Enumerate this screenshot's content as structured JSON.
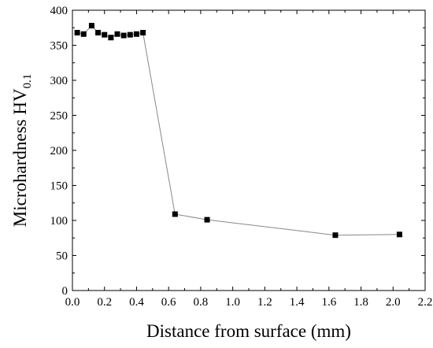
{
  "chart_data": {
    "type": "line",
    "title": "",
    "xlabel": "Distance from surface (mm)",
    "ylabel": "Microhardness HV",
    "ylabel_subscript": "0.1",
    "xlim": [
      0,
      2.2
    ],
    "ylim": [
      0,
      400
    ],
    "x_ticks": [
      0.0,
      0.2,
      0.4,
      0.6,
      0.8,
      1.0,
      1.2,
      1.4,
      1.6,
      1.8,
      2.0,
      2.2
    ],
    "y_ticks": [
      0,
      50,
      100,
      150,
      200,
      250,
      300,
      350,
      400
    ],
    "x_tick_labels": [
      "0.0",
      "0.2",
      "0.4",
      "0.6",
      "0.8",
      "1.0",
      "1.2",
      "1.4",
      "1.6",
      "1.8",
      "2.0",
      "2.2"
    ],
    "y_tick_labels": [
      "0",
      "50",
      "100",
      "150",
      "200",
      "250",
      "300",
      "350",
      "400"
    ],
    "grid": false,
    "legend": "none",
    "series": [
      {
        "x": [
          0.03,
          0.07,
          0.12,
          0.16,
          0.2,
          0.24,
          0.28,
          0.32,
          0.36,
          0.4,
          0.44,
          0.64,
          0.84,
          1.64,
          2.04
        ],
        "y": [
          368,
          366,
          378,
          368,
          365,
          361,
          366,
          364,
          365,
          366,
          368,
          109,
          101,
          79,
          80
        ]
      }
    ],
    "colors": {
      "line": "#888888",
      "marker": "#000000",
      "axis": "#000000"
    },
    "marker": "square"
  }
}
